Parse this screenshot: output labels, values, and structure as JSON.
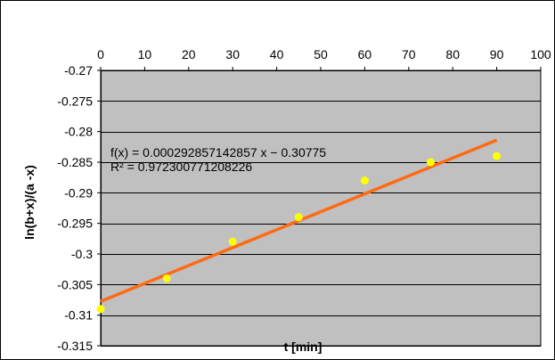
{
  "chart_data": {
    "type": "scatter",
    "title": "",
    "xlabel": "t [min]",
    "ylabel": "ln(b+x)/(a -x)",
    "xlim": [
      0,
      100
    ],
    "ylim": [
      -0.315,
      -0.27
    ],
    "x_ticks": [
      0,
      10,
      20,
      30,
      40,
      50,
      60,
      70,
      80,
      90,
      100
    ],
    "x_tick_labels": [
      "0",
      "10",
      "20",
      "30",
      "40",
      "50",
      "60",
      "70",
      "80",
      "90",
      "100"
    ],
    "y_ticks": [
      -0.27,
      -0.275,
      -0.28,
      -0.285,
      -0.29,
      -0.295,
      -0.3,
      -0.305,
      -0.31,
      -0.315
    ],
    "y_tick_labels": [
      "-0.27",
      "-0.275",
      "-0.28",
      "-0.285",
      "-0.29",
      "-0.295",
      "-0.3",
      "-0.305",
      "-0.31",
      "-0.315"
    ],
    "x_axis_position": "top",
    "grid": true,
    "legend": "none",
    "series": [
      {
        "x": [
          0,
          15,
          30,
          45,
          60,
          75,
          90
        ],
        "y": [
          -0.309,
          -0.304,
          -0.298,
          -0.294,
          -0.288,
          -0.285,
          -0.284
        ],
        "color": "#ffff00"
      }
    ],
    "trendline": {
      "type": "linear",
      "slope": 0.000292857142857,
      "intercept": -0.30775,
      "x_range": [
        0,
        90
      ],
      "color": "#ff6a13",
      "equation_label": "f(x) = 0.000292857142857 x − 0.30775",
      "r2_label": "R² = 0.972300771208226"
    },
    "colors": {
      "plot_background": "#c0c0c0",
      "gridline": "#000000",
      "point": "#ffff00",
      "trendline": "#ff6a13"
    }
  }
}
